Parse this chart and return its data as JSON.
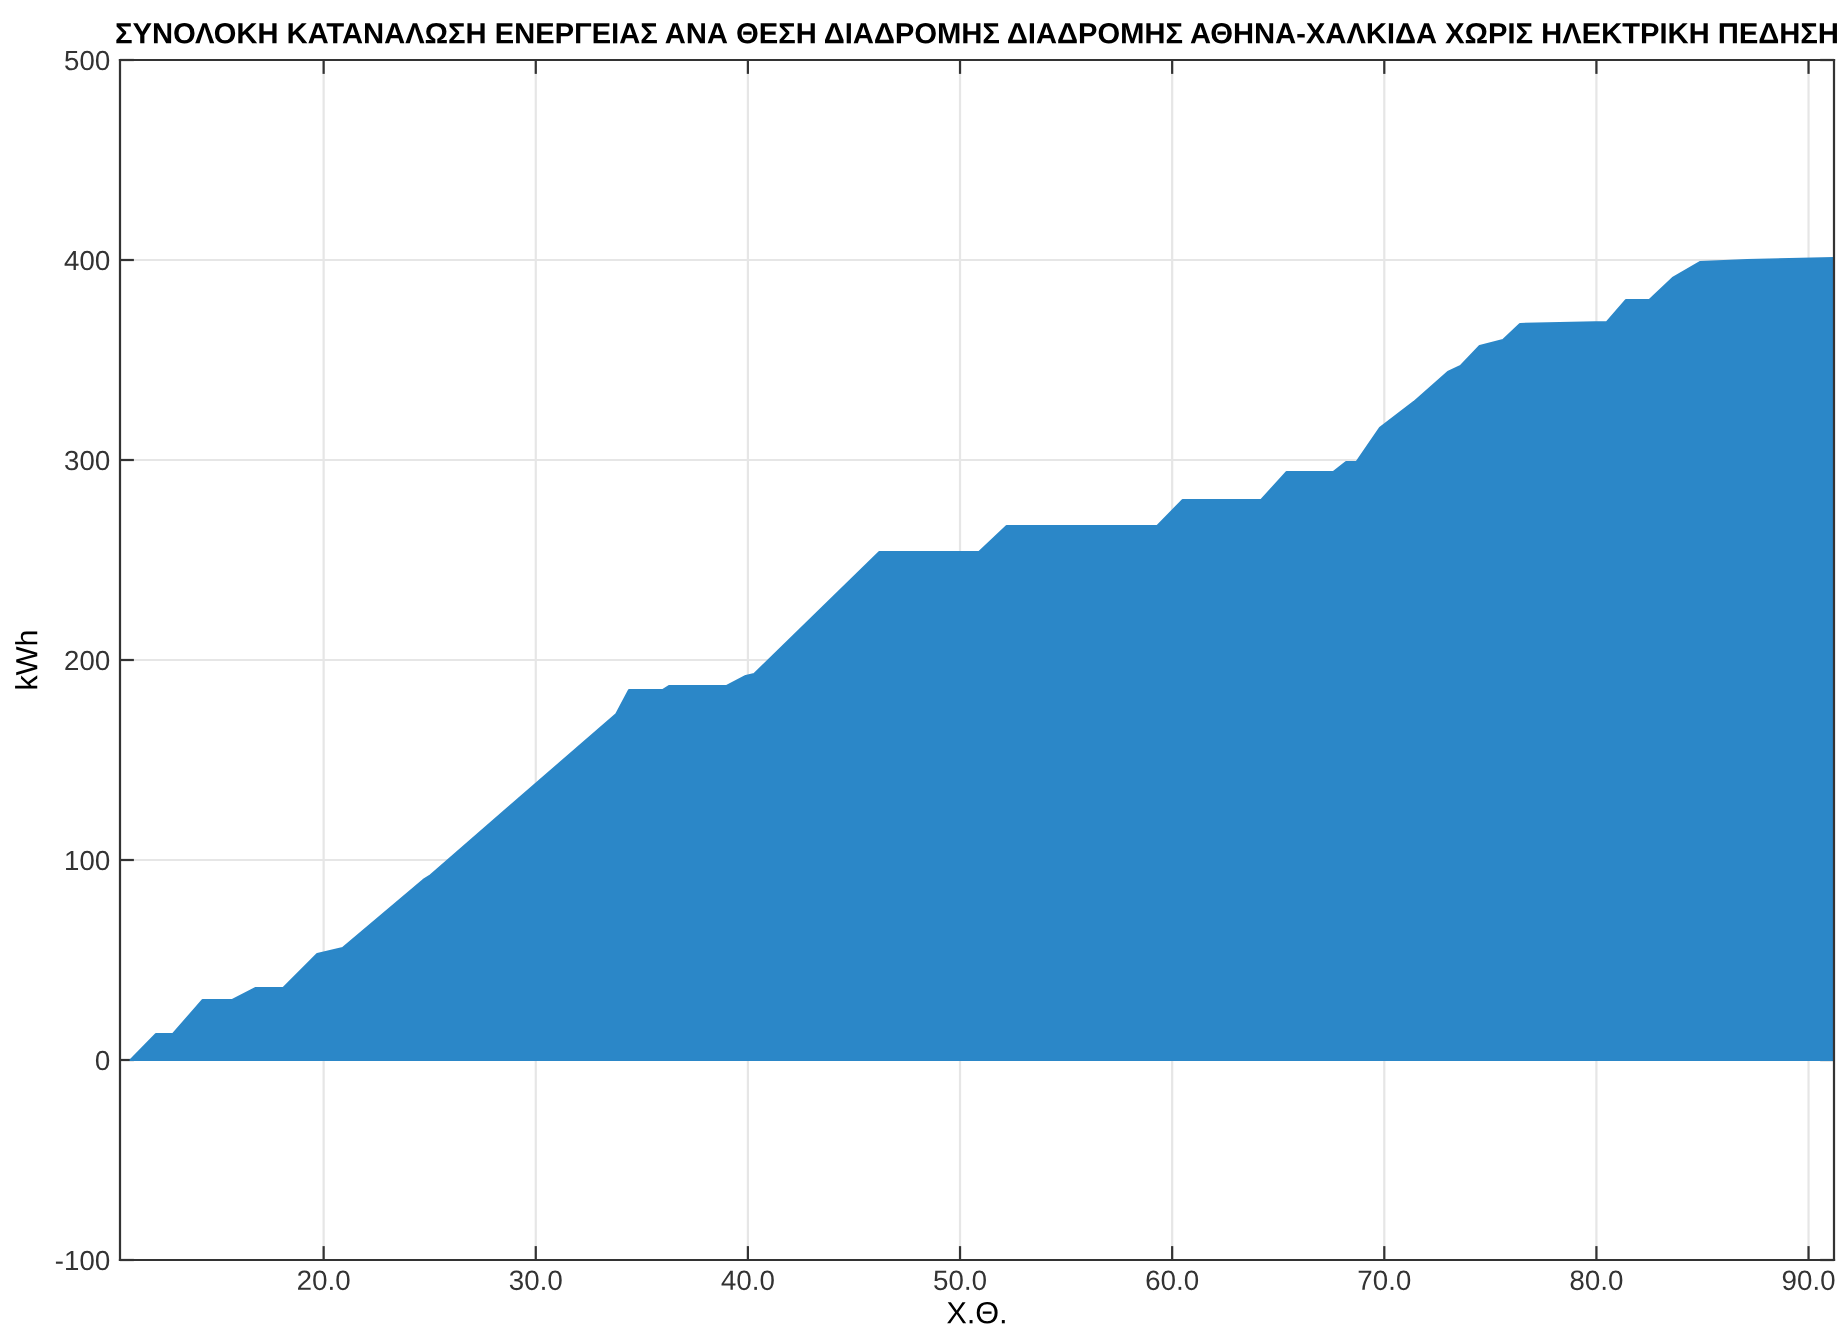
{
  "chart_data": {
    "type": "area",
    "title": "ΣΥΝΟΛΟΚΗ ΚΑΤΑΝΑΛΩΣΗ ΕΝΕΡΓΕΙΑΣ ΑΝΑ ΘΕΣΗ ΔΙΑΔΡΟΜΗΣ ΔΙΑΔΡΟΜΗΣ ΑΘΗΝΑ-ΧΑΛΚΙΔΑ ΧΩΡΙΣ ΗΛΕΚΤΡΙΚΗ ΠΕΔΗΣΗ",
    "xlabel": "Χ.Θ.",
    "ylabel": "kWh",
    "x": [
      10.9,
      12.1,
      12.9,
      14.3,
      15.7,
      16.8,
      18.1,
      19.7,
      20.9,
      24.7,
      25.0,
      33.8,
      34.4,
      36.0,
      36.3,
      39.0,
      39.9,
      40.3,
      46.2,
      50.9,
      52.2,
      59.3,
      60.5,
      64.2,
      65.4,
      67.6,
      68.2,
      68.7,
      69.8,
      71.4,
      73.0,
      73.6,
      74.5,
      75.6,
      76.4,
      80.5,
      81.4,
      82.5,
      83.6,
      84.9,
      87.1,
      91.2
    ],
    "series": [
      {
        "color": "#2b87c8",
        "values": [
          0,
          13,
          13,
          30,
          30,
          36,
          36,
          53,
          56,
          90,
          92,
          173,
          185,
          185,
          187,
          187,
          192,
          193,
          254,
          254,
          267,
          267,
          280,
          280,
          294,
          294,
          299,
          299,
          316,
          329,
          344,
          347,
          357,
          360,
          368,
          369,
          380,
          380,
          391,
          399,
          400,
          401
        ]
      }
    ],
    "xlim": [
      10.4,
      91.2
    ],
    "xticks": [
      {
        "value": 20,
        "label": "20.0"
      },
      {
        "value": 30,
        "label": "30.0"
      },
      {
        "value": 40,
        "label": "40.0"
      },
      {
        "value": 50,
        "label": "50.0"
      },
      {
        "value": 60,
        "label": "60.0"
      },
      {
        "value": 70,
        "label": "70.0"
      },
      {
        "value": 80,
        "label": "80.0"
      },
      {
        "value": 90,
        "label": "90.0"
      }
    ],
    "ylim": [
      -100,
      500
    ],
    "yticks": [
      -100,
      0,
      100,
      200,
      300,
      400,
      500
    ],
    "grid": true
  }
}
